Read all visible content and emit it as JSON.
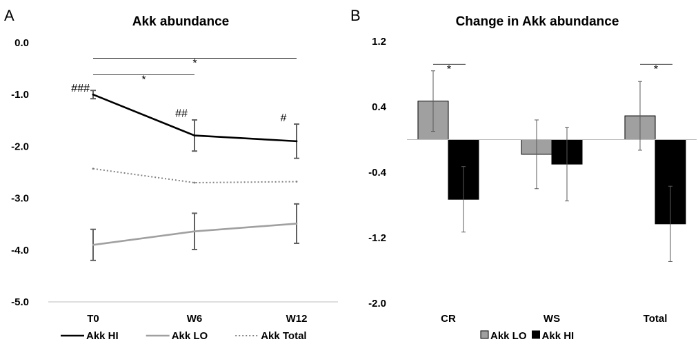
{
  "chart_data": [
    {
      "panel": "A",
      "type": "line",
      "title": "Akk abundance",
      "categories": [
        "T0",
        "W6",
        "W12"
      ],
      "yticks": [
        "0.0",
        "-1.0",
        "-2.0",
        "-3.0",
        "-4.0",
        "-5.0"
      ],
      "ylim": [
        -5.0,
        0.0
      ],
      "series": [
        {
          "name": "Akk HI",
          "values": [
            -1.0,
            -1.79,
            -1.9
          ],
          "errors": [
            0.08,
            0.3,
            0.33
          ],
          "color": "#000000",
          "style": "solid",
          "show_error": true
        },
        {
          "name": "Akk LO",
          "values": [
            -3.9,
            -3.64,
            -3.49
          ],
          "errors": [
            0.3,
            0.35,
            0.38
          ],
          "color": "#a0a0a0",
          "style": "solid",
          "show_error": true
        },
        {
          "name": "Akk Total",
          "values": [
            -2.43,
            -2.7,
            -2.68
          ],
          "color": "#808080",
          "style": "dotted",
          "show_error": false
        }
      ],
      "annotations": [
        {
          "text": "###",
          "category": "T0",
          "y": -0.88
        },
        {
          "text": "##",
          "category": "W6",
          "y": -1.36
        },
        {
          "text": "#",
          "category": "W12",
          "y": -1.45
        }
      ],
      "significance": [
        {
          "from": "T0",
          "to": "W12",
          "label": "*",
          "y": -0.3
        },
        {
          "from": "T0",
          "to": "W6",
          "label": "*",
          "y": -0.62
        }
      ],
      "legend": "bottom"
    },
    {
      "panel": "B",
      "type": "bar",
      "title": "Change in Akk abundance",
      "categories": [
        "CR",
        "WS",
        "Total"
      ],
      "yticks": [
        "1.2",
        "0.4",
        "-0.4",
        "-1.2",
        "-2.0"
      ],
      "ylim": [
        -2.0,
        1.2
      ],
      "series": [
        {
          "name": "Akk LO",
          "values": [
            0.47,
            -0.18,
            0.29
          ],
          "errors": [
            0.37,
            0.42,
            0.42
          ],
          "color": "#a0a0a0"
        },
        {
          "name": "Akk HI",
          "values": [
            -0.73,
            -0.3,
            -1.03
          ],
          "errors": [
            0.4,
            0.45,
            0.46
          ],
          "color": "#000000"
        }
      ],
      "significance": [
        {
          "category": "CR",
          "label": "*",
          "y": 0.92
        },
        {
          "category": "Total",
          "label": "*",
          "y": 0.92
        }
      ],
      "legend": "bottom"
    }
  ]
}
